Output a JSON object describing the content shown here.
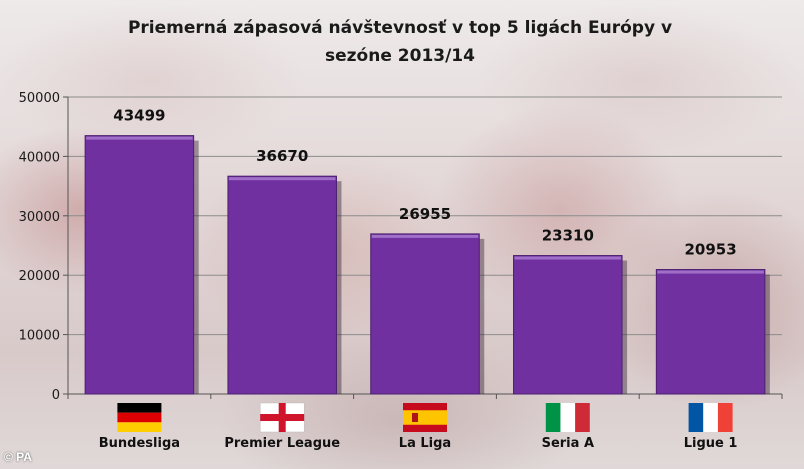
{
  "title": "Priemerná zápasová návštevnosť v top 5 ligách Európy v sezóne 2013/14",
  "watermark": "© PA",
  "chart_data": {
    "type": "bar",
    "title": "Priemerná zápasová návštevnosť v top 5 ligách Európy v sezóne 2013/14",
    "xlabel": "",
    "ylabel": "",
    "categories": [
      "Bundesliga",
      "Premier League",
      "La Liga",
      "Seria A",
      "Ligue 1"
    ],
    "values": [
      43499,
      36670,
      26955,
      23310,
      20953
    ],
    "data_labels": [
      "43499",
      "36670",
      "26955",
      "23310",
      "20953"
    ],
    "flags": [
      "germany-flag",
      "england-flag",
      "spain-flag",
      "italy-flag",
      "france-flag"
    ],
    "ylim": [
      0,
      50000
    ],
    "yticks": [
      0,
      10000,
      20000,
      30000,
      40000,
      50000
    ],
    "ytick_labels": [
      "0",
      "10000",
      "20000",
      "30000",
      "40000",
      "50000"
    ],
    "grid": true,
    "legend": "none",
    "bar_color": "#7030a0"
  }
}
